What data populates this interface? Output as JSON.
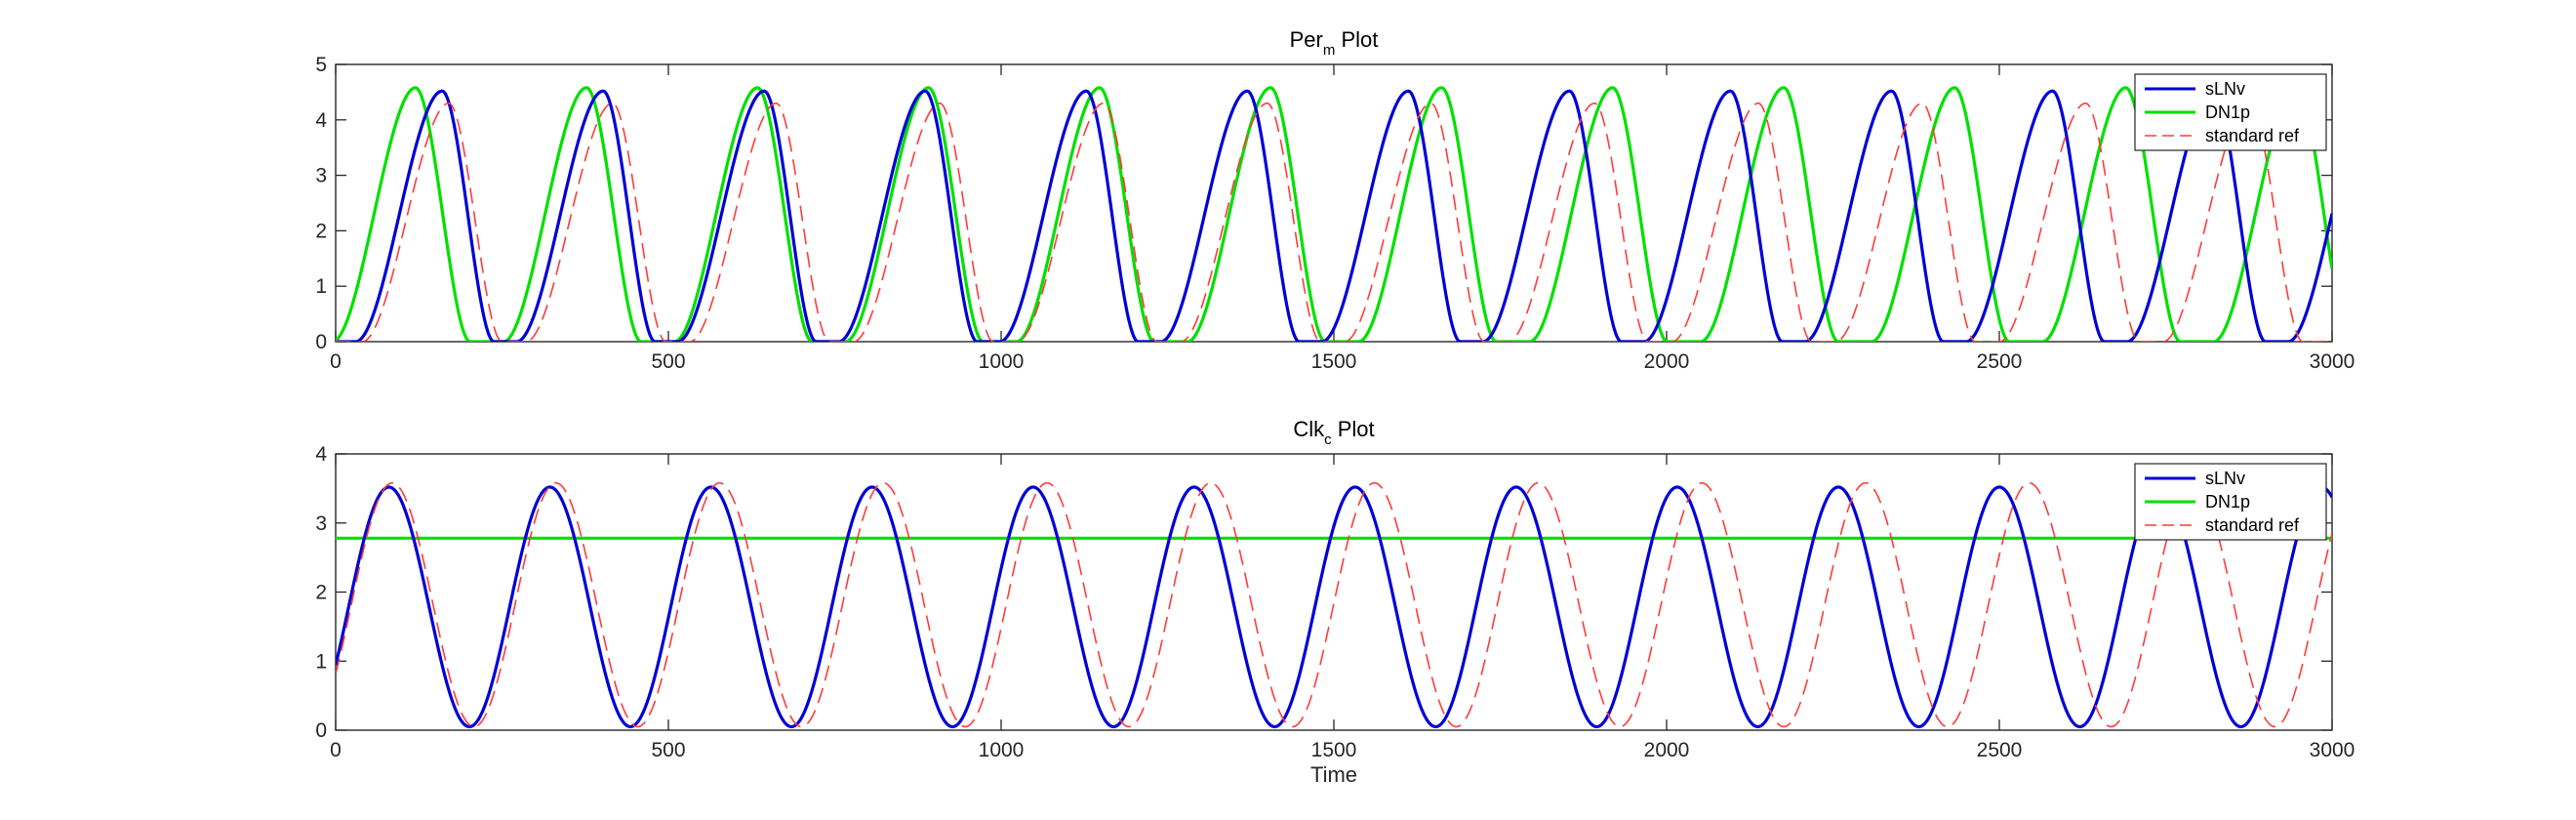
{
  "colors": {
    "sLNv": "#0000d6",
    "DN1p": "#00e000",
    "standard_ref": "#ff3b3b"
  },
  "chart_data": [
    {
      "type": "line",
      "title": "Per",
      "title_subscript": "m",
      "title_suffix": " Plot",
      "xlabel": "",
      "ylabel": "",
      "xlim": [
        0,
        3000
      ],
      "ylim": [
        0,
        5
      ],
      "xticks": [
        0,
        500,
        1000,
        1500,
        2000,
        2500,
        3000
      ],
      "yticks": [
        0,
        1,
        2,
        3,
        4,
        5
      ],
      "grid": false,
      "legend_position": "top-right",
      "series": [
        {
          "name": "sLNv",
          "style": "solid",
          "color_key": "sLNv",
          "model": "sharkfin",
          "period": 242,
          "trough_time": 30,
          "rise": 130,
          "fall": 78,
          "min": 0.0,
          "max": 4.52
        },
        {
          "name": "DN1p",
          "style": "solid",
          "color_key": "DN1p",
          "model": "sharkfin",
          "period": 257,
          "trough_time": -5,
          "rise": 125,
          "fall": 82,
          "min": 0.0,
          "max": 4.58
        },
        {
          "name": "standard ref",
          "style": "dashed",
          "color_key": "standard_ref",
          "model": "sharkfin",
          "period": 246,
          "trough_time": 40,
          "rise": 130,
          "fall": 80,
          "min": 0.0,
          "max": 4.3
        }
      ]
    },
    {
      "type": "line",
      "title": "Clk",
      "title_subscript": "c",
      "title_suffix": " Plot",
      "xlabel": "Time",
      "ylabel": "",
      "xlim": [
        0,
        3000
      ],
      "ylim": [
        0,
        4
      ],
      "xticks": [
        0,
        500,
        1000,
        1500,
        2000,
        2500,
        3000
      ],
      "yticks": [
        0,
        1,
        2,
        3,
        4
      ],
      "grid": false,
      "legend_position": "top-right",
      "series": [
        {
          "name": "sLNv",
          "style": "solid",
          "color_key": "sLNv",
          "model": "smooth",
          "period": 242,
          "peak_time": 80,
          "min": 0.05,
          "max": 3.52
        },
        {
          "name": "DN1p",
          "style": "solid",
          "color_key": "DN1p",
          "model": "flat",
          "value": 2.78
        },
        {
          "name": "standard ref",
          "style": "dashed",
          "color_key": "standard_ref",
          "model": "smooth",
          "period": 246,
          "peak_time": 85,
          "min": 0.05,
          "max": 3.58
        }
      ]
    }
  ]
}
